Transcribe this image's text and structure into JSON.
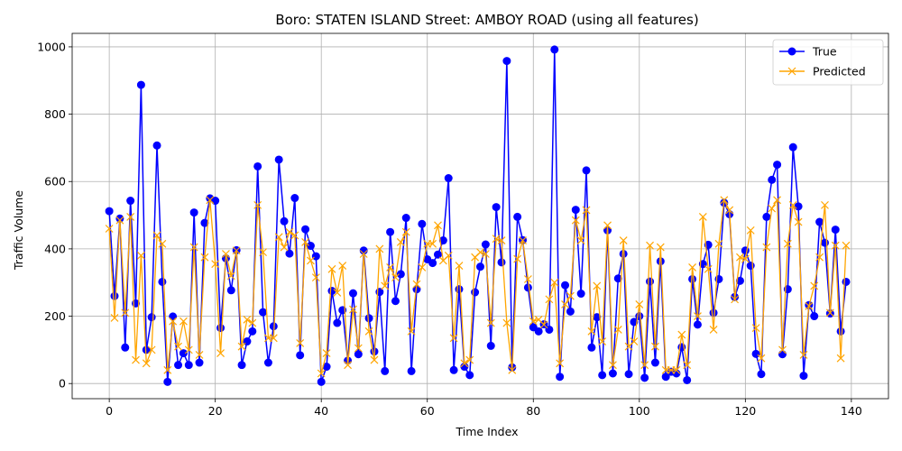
{
  "chart_data": {
    "type": "line",
    "title": "Boro: STATEN ISLAND Street: AMBOY ROAD (using all features)",
    "xlabel": "Time Index",
    "ylabel": "Traffic Volume",
    "xlim": [
      -7,
      147
    ],
    "ylim": [
      -45,
      1040
    ],
    "xticks": [
      0,
      20,
      40,
      60,
      80,
      100,
      120,
      140
    ],
    "yticks": [
      0,
      200,
      400,
      600,
      800,
      1000
    ],
    "grid": true,
    "legend_position": "top-right",
    "colors": {
      "true": "#0000ff",
      "predicted": "#ffa500"
    },
    "series": [
      {
        "name": "True",
        "marker": "circle",
        "values": [
          512,
          260,
          490,
          107,
          543,
          238,
          887,
          100,
          197,
          707,
          302,
          5,
          199,
          55,
          90,
          55,
          508,
          62,
          477,
          550,
          543,
          165,
          372,
          277,
          396,
          55,
          125,
          155,
          645,
          212,
          62,
          170,
          665,
          482,
          386,
          551,
          84,
          458,
          409,
          378,
          5,
          50,
          275,
          180,
          218,
          68,
          268,
          87,
          395,
          194,
          95,
          272,
          37,
          450,
          245,
          325,
          492,
          37,
          280,
          474,
          369,
          358,
          383,
          425,
          610,
          40,
          280,
          50,
          25,
          271,
          347,
          413,
          112,
          524,
          360,
          958,
          48,
          495,
          426,
          285,
          167,
          155,
          176,
          160,
          992,
          20,
          292,
          214,
          516,
          267,
          633,
          107,
          197,
          25,
          455,
          30,
          312,
          385,
          28,
          183,
          200,
          17,
          303,
          62,
          363,
          20,
          35,
          30,
          108,
          10,
          310,
          175,
          355,
          412,
          210,
          310,
          537,
          503,
          257,
          305,
          395,
          350,
          88,
          28,
          495,
          605,
          650,
          87,
          280,
          702,
          526,
          23,
          233,
          200,
          480,
          418,
          208,
          457,
          155,
          302
        ]
      },
      {
        "name": "Predicted",
        "marker": "x",
        "values": [
          460,
          195,
          485,
          210,
          495,
          70,
          380,
          60,
          100,
          440,
          415,
          40,
          185,
          110,
          185,
          100,
          405,
          85,
          375,
          545,
          355,
          90,
          385,
          320,
          395,
          110,
          190,
          180,
          530,
          390,
          135,
          135,
          435,
          405,
          450,
          440,
          120,
          420,
          365,
          315,
          30,
          90,
          340,
          270,
          350,
          55,
          220,
          105,
          385,
          155,
          70,
          400,
          290,
          345,
          315,
          420,
          450,
          155,
          295,
          345,
          415,
          415,
          470,
          365,
          380,
          135,
          350,
          60,
          70,
          375,
          390,
          385,
          180,
          430,
          425,
          180,
          40,
          370,
          425,
          310,
          185,
          190,
          175,
          250,
          300,
          60,
          235,
          260,
          485,
          425,
          515,
          155,
          290,
          125,
          470,
          55,
          160,
          425,
          110,
          125,
          235,
          55,
          410,
          110,
          405,
          40,
          40,
          40,
          145,
          55,
          345,
          200,
          495,
          340,
          160,
          415,
          545,
          515,
          250,
          375,
          370,
          455,
          165,
          75,
          405,
          520,
          545,
          100,
          415,
          530,
          480,
          85,
          230,
          290,
          375,
          530,
          210,
          410,
          75,
          410
        ]
      }
    ]
  }
}
